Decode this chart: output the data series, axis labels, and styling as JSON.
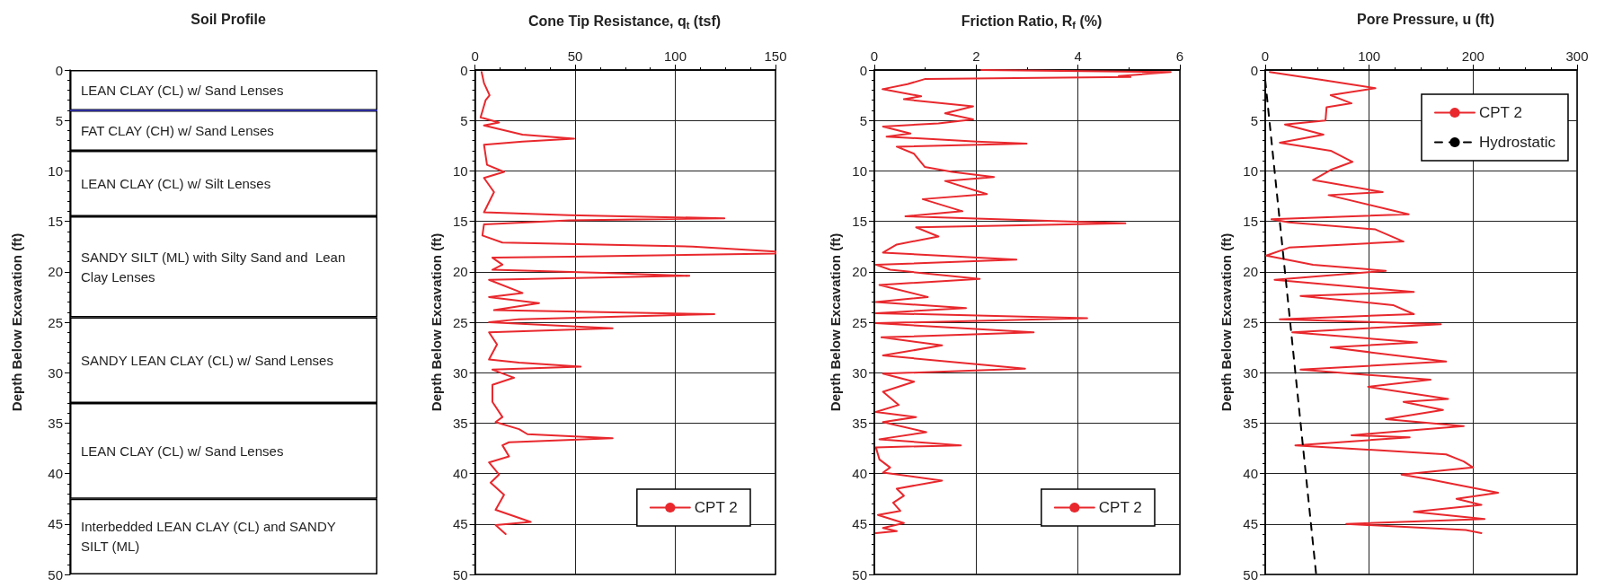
{
  "chart_data": [
    {
      "type": "bar",
      "title": "Soil Profile",
      "ylabel": "Depth Below Excavation (ft)",
      "categories": [
        null
      ],
      "stacked": true,
      "tick_labels": "y",
      "ylim": [
        50,
        0
      ],
      "yticks": [
        0,
        5,
        10,
        15,
        20,
        25,
        30,
        35,
        40,
        45,
        50
      ],
      "series": [
        {
          "name": "LEAN CLAY (CL) w/ Sand Lenses",
          "color": "#ffffff",
          "values": [
            4
          ]
        },
        {
          "name": "FAT CLAY (CH) w/ Sand Lenses",
          "color": "#ffffff",
          "values": [
            4
          ]
        },
        {
          "name": "LEAN CLAY (CL) w/ Silt Lenses",
          "color": "#ffffff",
          "values": [
            6.5
          ]
        },
        {
          "name": "SANDY SILT (ML) with Silty Sand and  Lean Clay Lenses",
          "color": "#ffffff",
          "values": [
            10
          ]
        },
        {
          "name": "SANDY LEAN CLAY (CL) w/ Sand Lenses",
          "color": "#ffffff",
          "values": [
            8.5
          ]
        },
        {
          "name": "LEAN CLAY (CL) w/ Sand Lenses",
          "color": "#ffffff",
          "values": [
            9.5
          ]
        },
        {
          "name": "Interbedded LEAN CLAY (CL) and SANDY SILT (ML)",
          "color": "#ffffff",
          "values": [
            7.5
          ]
        }
      ],
      "ref_lines": [
        {
          "axis": "y",
          "value": 4,
          "color": "#2b2b9b"
        }
      ]
    },
    {
      "type": "line",
      "title": "Cone Tip Resistance, q$_{t}$ (tsf)",
      "ylabel": "Depth Below Excavation (ft)",
      "xlim": [
        0,
        150
      ],
      "xticks": [
        0,
        50,
        100,
        150
      ],
      "ylim": [
        50,
        0
      ],
      "yticks": [
        0,
        5,
        10,
        15,
        20,
        25,
        30,
        35,
        40,
        45,
        50
      ],
      "grid": true,
      "legend": "bottom right",
      "series": [
        {
          "name": "CPT 2",
          "color": "#e8282d",
          "line_style": "solid",
          "x": [
            3.3,
            4.5,
            7.3,
            5.3,
            2.8,
            12,
            4.5,
            23.7,
            49.5,
            23.7,
            4.5,
            6,
            14.5,
            4.5,
            9.5,
            4.5,
            47,
            124.5,
            47,
            4.5,
            3.7,
            13.7,
            108.7,
            150,
            150,
            47,
            8.7,
            13.7,
            8.7,
            63.7,
            107,
            7,
            23.7,
            7,
            32,
            9.5,
            119.5,
            22,
            7,
            68.7,
            7,
            11,
            7,
            22,
            52.8,
            8.7,
            19.5,
            8.7,
            8.7,
            13.7,
            10.3,
            22,
            26.2,
            68.7,
            17,
            13.7,
            17,
            7,
            12,
            7.8,
            14.5,
            10.3,
            27.8,
            10.3,
            15.3
          ],
          "values": [
            0.2,
            1.3,
            2.5,
            3,
            4.7,
            5.2,
            5.5,
            6.4,
            6.8,
            7.1,
            7.4,
            9.4,
            10.1,
            10.7,
            12.1,
            14.1,
            14.4,
            14.7,
            14.9,
            15.3,
            16.4,
            17.1,
            17.5,
            18,
            18.2,
            18.5,
            18.6,
            19.3,
            19.8,
            20.1,
            20.4,
            20.8,
            22.1,
            22.5,
            23.1,
            23.8,
            24.2,
            24.7,
            25,
            25.6,
            26,
            27.2,
            28.7,
            29,
            29.4,
            29.7,
            30.5,
            31.2,
            32.9,
            34.4,
            34.9,
            35.6,
            36.1,
            36.5,
            36.9,
            37.2,
            38.3,
            38.9,
            40.1,
            40.9,
            42.1,
            43.6,
            44.8,
            45.1,
            46
          ]
        }
      ]
    },
    {
      "type": "line",
      "title": "Friction Ratio, R$_{f}$ (%)",
      "ylabel": "Depth Below Excavation (ft)",
      "xlim": [
        0,
        6
      ],
      "xticks": [
        0,
        2,
        4,
        6
      ],
      "ylim": [
        50,
        0
      ],
      "yticks": [
        0,
        5,
        10,
        15,
        20,
        25,
        30,
        35,
        40,
        45,
        50
      ],
      "grid": true,
      "legend": "bottom right",
      "series": [
        {
          "name": "CPT 2",
          "color": "#e8282d",
          "line_style": "solid",
          "x": [
            2.1,
            5.82,
            4.8,
            5.03,
            0.99,
            0.65,
            0.16,
            0.92,
            0.58,
            1.94,
            1.39,
            1.94,
            1.26,
            0.17,
            0.71,
            0.24,
            2.01,
            2.99,
            0.44,
            0.78,
            0.99,
            1.53,
            2.35,
            1.39,
            2.21,
            0.95,
            1.73,
            0.61,
            4.93,
            0.82,
            1.26,
            0.44,
            0.17,
            2.79,
            0.03,
            0.31,
            2.07,
            0.1,
            1.05,
            0.03,
            1.8,
            0.03,
            4.18,
            0.03,
            3.13,
            0.14,
            1.33,
            0.17,
            2.96,
            0.17,
            0.78,
            0.17,
            0.48,
            0.03,
            0.82,
            0.17,
            1.02,
            0.1,
            1.7,
            0.03,
            0.1,
            0.31,
            0.17,
            1.33,
            0.44,
            0.58,
            0.37,
            0.51,
            0.07,
            0.58,
            0.17,
            0.44,
            0.03
          ],
          "values": [
            0,
            0.2,
            0.6,
            0.7,
            0.9,
            1.4,
            1.9,
            2.6,
            2.9,
            3.6,
            4.3,
            4.9,
            5.3,
            5.6,
            6.3,
            6.6,
            7.1,
            7.3,
            7.6,
            8.3,
            9.6,
            10.1,
            10.6,
            11,
            12.3,
            12.8,
            14,
            14.5,
            15.2,
            15.6,
            16.5,
            17.3,
            18.1,
            18.8,
            19.3,
            19.8,
            20.7,
            21.3,
            22.5,
            23,
            23.6,
            24.1,
            24.6,
            25.1,
            26,
            26.5,
            27.3,
            28.3,
            29.6,
            30.1,
            30.9,
            31.9,
            33.2,
            33.9,
            34.4,
            34.9,
            35.9,
            36.6,
            37.2,
            37.4,
            38.6,
            39.4,
            39.9,
            40.7,
            41.5,
            42.2,
            42.9,
            43.7,
            44.1,
            44.9,
            45.4,
            45.7,
            45.9
          ]
        }
      ]
    },
    {
      "type": "line",
      "title": "Pore Pressure, u (ft)",
      "ylabel": "Depth Below Excavation (ft)",
      "xlim": [
        0,
        300
      ],
      "xticks": [
        0,
        100,
        200,
        300
      ],
      "ylim": [
        50,
        0
      ],
      "yticks": [
        0,
        5,
        10,
        15,
        20,
        25,
        30,
        35,
        40,
        45,
        50
      ],
      "grid": true,
      "legend": "top right",
      "series": [
        {
          "name": "CPT 2",
          "color": "#e8282d",
          "line_style": "solid",
          "x": [
            4.3,
            56,
            106,
            63,
            83,
            59,
            58,
            19,
            56,
            14,
            63,
            84,
            63,
            46,
            113,
            61,
            138,
            6,
            23,
            106,
            133,
            23,
            1,
            46,
            116,
            9,
            143,
            34,
            123,
            143,
            14,
            169,
            26,
            146,
            63,
            174,
            34,
            159,
            99,
            176,
            133,
            171,
            116,
            191,
            83,
            139,
            29,
            174,
            191,
            200,
            131,
            159,
            224,
            184,
            208,
            143,
            211,
            78,
            193,
            208
          ],
          "values": [
            0.2,
            1,
            1.8,
            2.5,
            3.3,
            3.7,
            5,
            5.4,
            6.4,
            7.2,
            8,
            9.1,
            9.9,
            10.9,
            12.1,
            12.4,
            14.3,
            14.8,
            15.1,
            15.8,
            17,
            17.6,
            18.4,
            19.3,
            19.9,
            20.8,
            22,
            22.4,
            23.3,
            24.2,
            24.7,
            25.2,
            26,
            27,
            27.5,
            28.9,
            29.7,
            30.7,
            31.4,
            32.6,
            32.9,
            33.7,
            34.6,
            35.3,
            36.2,
            36.4,
            37.2,
            38.1,
            38.8,
            39.4,
            40.1,
            40.6,
            41.9,
            42.5,
            43.1,
            43.8,
            44.5,
            45,
            45.6,
            45.9
          ]
        },
        {
          "name": "Hydrostatic",
          "color": "#000000",
          "line_style": "dashed",
          "x": [
            0,
            49
          ],
          "values": [
            1,
            50
          ]
        }
      ]
    }
  ]
}
